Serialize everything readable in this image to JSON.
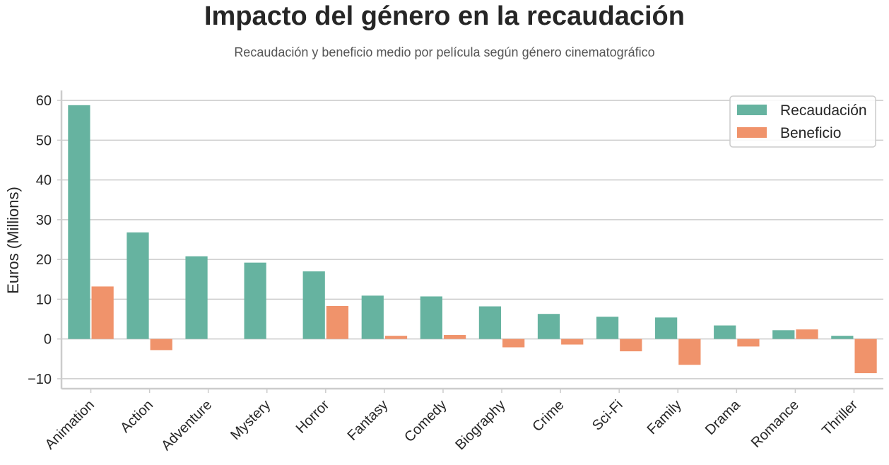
{
  "chart_data": {
    "type": "bar",
    "title": "Impacto del género en la recaudación",
    "subtitle": "Recaudación y beneficio medio por película según género cinematográfico",
    "xlabel": "",
    "ylabel": "Euros (Millions)",
    "ylim": [
      -12.5,
      62.5
    ],
    "yticks": [
      -10,
      0,
      10,
      20,
      30,
      40,
      50,
      60
    ],
    "ytick_labels": [
      "−10",
      "0",
      "10",
      "20",
      "30",
      "40",
      "50",
      "60"
    ],
    "grid": "horizontal",
    "legend_position": "top-right",
    "categories": [
      "Animation",
      "Action",
      "Adventure",
      "Mystery",
      "Horror",
      "Fantasy",
      "Comedy",
      "Biography",
      "Crime",
      "Sci-Fi",
      "Family",
      "Drama",
      "Romance",
      "Thriller"
    ],
    "series": [
      {
        "name": "Recaudación",
        "color": "#66b3a0",
        "values": [
          58.8,
          26.8,
          20.8,
          19.2,
          17.0,
          10.9,
          10.7,
          8.2,
          6.3,
          5.6,
          5.4,
          3.4,
          2.2,
          0.8
        ]
      },
      {
        "name": "Beneficio",
        "color": "#f0936b",
        "values": [
          13.2,
          -2.8,
          0.0,
          0.0,
          8.3,
          0.8,
          1.0,
          -2.1,
          -1.4,
          -3.1,
          -6.5,
          -1.9,
          2.4,
          -8.6
        ]
      }
    ]
  }
}
